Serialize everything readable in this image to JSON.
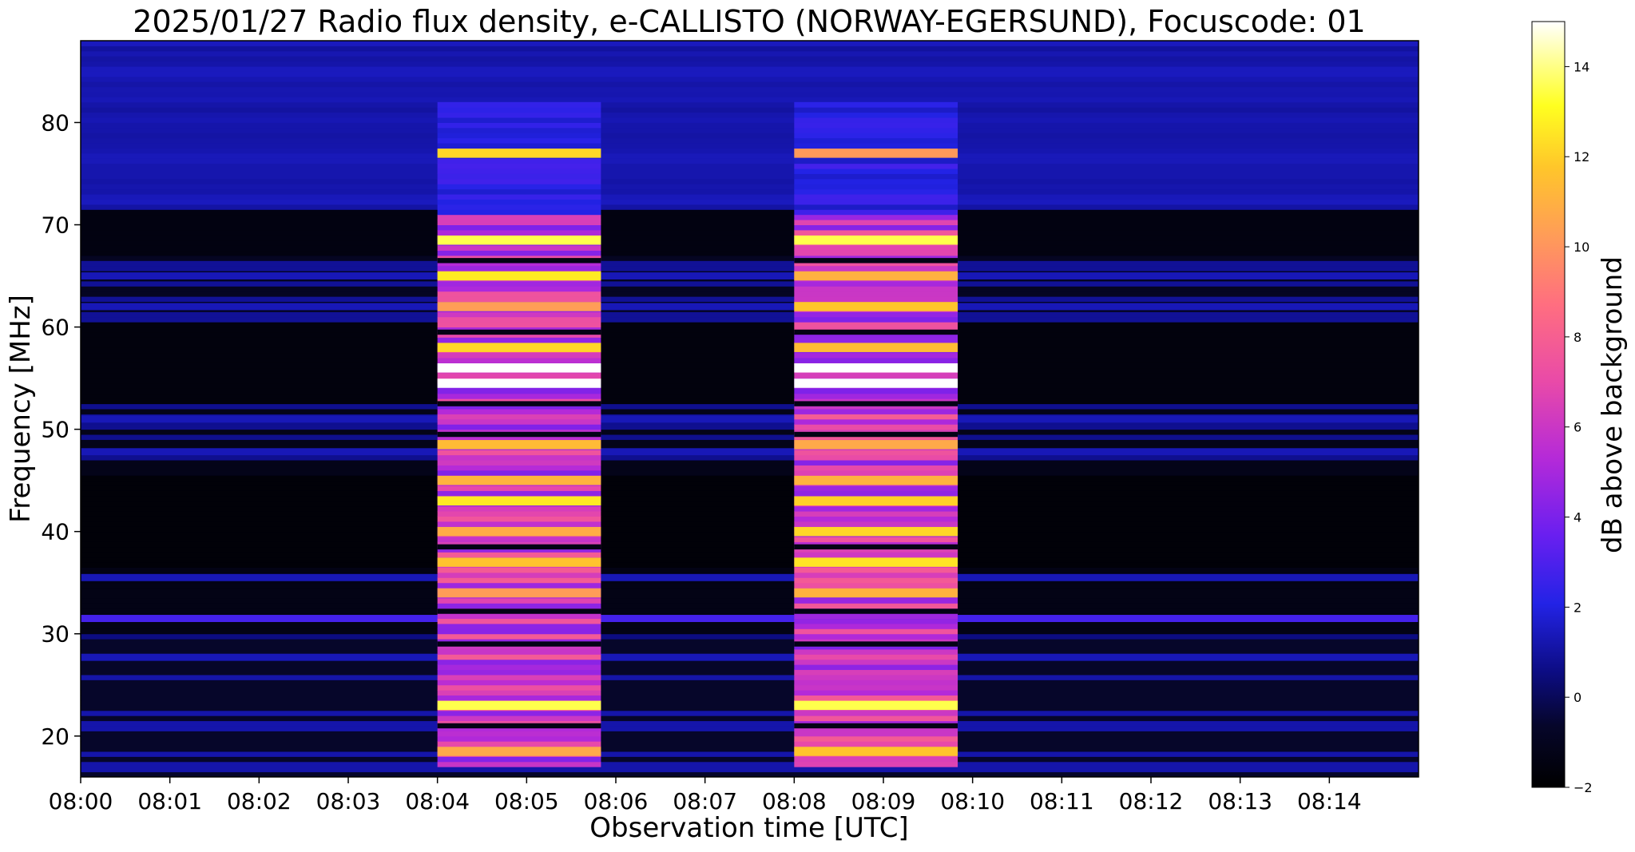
{
  "chart_data": {
    "type": "heatmap",
    "title": "2025/01/27  Radio flux density, e-CALLISTO (NORWAY-EGERSUND), Focuscode: 01",
    "xlabel": "Observation time [UTC]",
    "ylabel": "Frequency [MHz]",
    "colorbar_label": "dB above background",
    "colormap": "gnuplot2",
    "x_ticks": [
      "08:00",
      "08:01",
      "08:02",
      "08:03",
      "08:04",
      "08:05",
      "08:06",
      "08:07",
      "08:08",
      "08:09",
      "08:10",
      "08:11",
      "08:12",
      "08:13",
      "08:14"
    ],
    "x_range_minutes": [
      0,
      15
    ],
    "y_ticks": [
      20,
      30,
      40,
      50,
      60,
      70,
      80
    ],
    "ylim": [
      16,
      88
    ],
    "colorbar_ticks": [
      -2,
      0,
      2,
      4,
      6,
      8,
      10,
      12,
      14
    ],
    "colorbar_range": [
      -2,
      15
    ],
    "bursts": [
      {
        "start": "08:04",
        "end": "08:05:50"
      },
      {
        "start": "08:08",
        "end": "08:09:50"
      }
    ],
    "persistent_bands_mhz": [
      31.5,
      35.5,
      27.7,
      47.8,
      51.0,
      65.0,
      62.0
    ],
    "burst_bright_bands_mhz": [
      54.5,
      56,
      23,
      68.5,
      40,
      45,
      37,
      34,
      18.5,
      48.5,
      43,
      58,
      62,
      65,
      77
    ]
  },
  "colors": {
    "axes_bg": "#000000",
    "cmap_stops": [
      "#000000",
      "#0c0c82",
      "#3232ff",
      "#9a2af0",
      "#ee4da0",
      "#ff8a6a",
      "#ffbe28",
      "#ffff36",
      "#ffffff"
    ]
  }
}
